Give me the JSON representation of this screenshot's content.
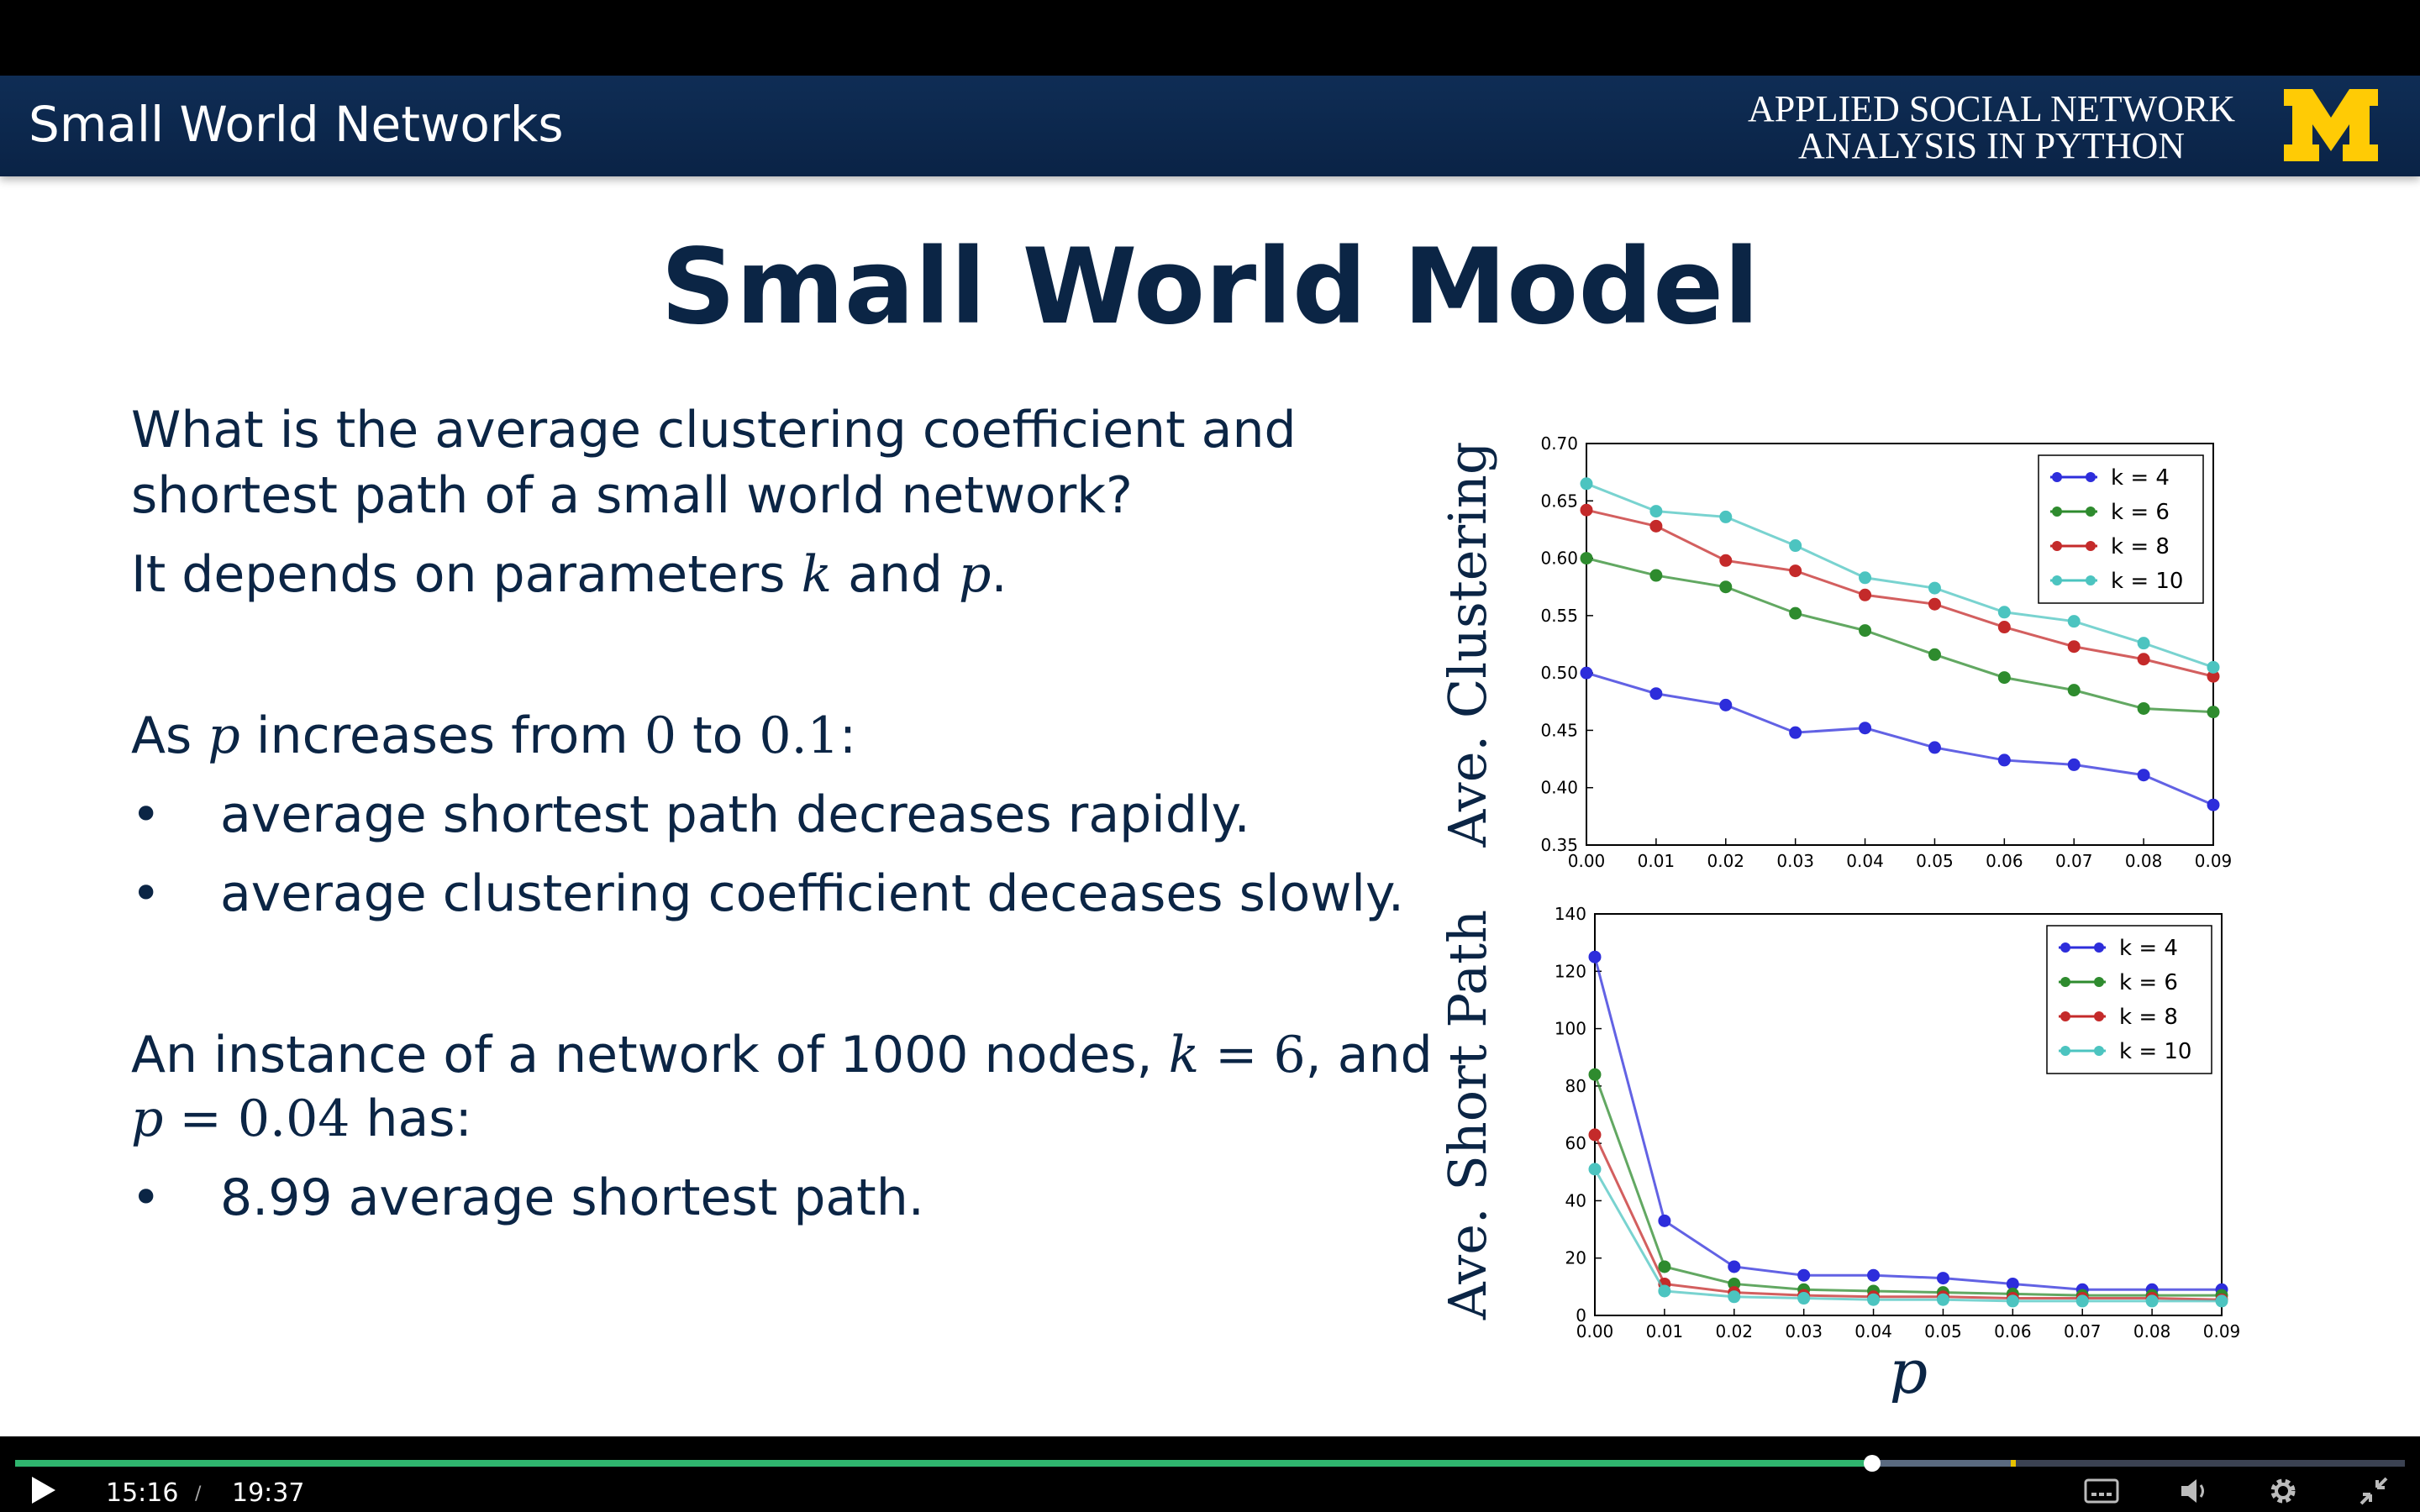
{
  "header": {
    "title": "Small World Networks",
    "course_line1": "APPLIED SOCIAL NETWORK",
    "course_line2": "ANALYSIS IN PYTHON",
    "logo_letter": "M",
    "bg_color": "#0f2d55",
    "logo_color": "#ffcb05"
  },
  "slide": {
    "title": "Small World Model",
    "q_line1": "What is the average clustering coefficient and",
    "q_line2": "shortest path of a small world network?",
    "dep_pre": "It depends on parameters ",
    "dep_k": "k",
    "dep_and": " and ",
    "dep_p": "p",
    "dep_end": ".",
    "as_pre": "As ",
    "as_p": "p",
    "as_mid": " increases from ",
    "as_0": "0",
    "as_to": " to ",
    "as_01": "0.1",
    "as_end": ":",
    "bullet_char": "•",
    "bullet1": "average shortest path decreases rapidly.",
    "bullet2": "average clustering coefficient deceases slowly.",
    "inst_pre": "An instance of a network of 1000 nodes, ",
    "inst_k": "k",
    "inst_eq1": " = 6",
    "inst_and": ", and",
    "inst_p": "p",
    "inst_eq2": " = 0.04",
    "inst_has": " has:",
    "bullet3": "8.99 average shortest path."
  },
  "chart_data": [
    {
      "type": "line",
      "ylabel": "Ave. Clustering",
      "xlabel": "",
      "x": [
        0.0,
        0.01,
        0.02,
        0.03,
        0.04,
        0.05,
        0.06,
        0.07,
        0.08,
        0.09
      ],
      "xticks": [
        "0.00",
        "0.01",
        "0.02",
        "0.03",
        "0.04",
        "0.05",
        "0.06",
        "0.07",
        "0.08",
        "0.09"
      ],
      "ylim": [
        0.35,
        0.7
      ],
      "yticks": [
        "0.35",
        "0.40",
        "0.45",
        "0.50",
        "0.55",
        "0.60",
        "0.65",
        "0.70"
      ],
      "legend": "top-right",
      "series": [
        {
          "name": "k = 4",
          "color": "#2d2ddb",
          "values": [
            0.5,
            0.482,
            0.472,
            0.448,
            0.452,
            0.435,
            0.424,
            0.42,
            0.411,
            0.385
          ]
        },
        {
          "name": "k = 6",
          "color": "#2e8b2e",
          "values": [
            0.6,
            0.585,
            0.575,
            0.552,
            0.537,
            0.516,
            0.496,
            0.485,
            0.469,
            0.466
          ]
        },
        {
          "name": "k = 8",
          "color": "#c42a2a",
          "values": [
            0.642,
            0.628,
            0.598,
            0.589,
            0.568,
            0.56,
            0.54,
            0.523,
            0.512,
            0.497
          ]
        },
        {
          "name": "k = 10",
          "color": "#4cc4c0",
          "values": [
            0.665,
            0.641,
            0.636,
            0.611,
            0.583,
            0.574,
            0.553,
            0.545,
            0.526,
            0.505
          ]
        }
      ]
    },
    {
      "type": "line",
      "ylabel": "Ave. Short Path",
      "xlabel": "p",
      "x": [
        0.0,
        0.01,
        0.02,
        0.03,
        0.04,
        0.05,
        0.06,
        0.07,
        0.08,
        0.09
      ],
      "xticks": [
        "0.00",
        "0.01",
        "0.02",
        "0.03",
        "0.04",
        "0.05",
        "0.06",
        "0.07",
        "0.08",
        "0.09"
      ],
      "ylim": [
        0,
        140
      ],
      "yticks": [
        "0",
        "20",
        "40",
        "60",
        "80",
        "100",
        "120",
        "140"
      ],
      "legend": "top-right",
      "series": [
        {
          "name": "k = 4",
          "color": "#2d2ddb",
          "values": [
            125,
            33,
            17,
            14,
            14,
            13,
            11,
            9,
            9,
            9
          ]
        },
        {
          "name": "k = 6",
          "color": "#2e8b2e",
          "values": [
            84,
            17,
            11,
            9,
            8.5,
            8,
            7.5,
            7,
            7,
            7
          ]
        },
        {
          "name": "k = 8",
          "color": "#c42a2a",
          "values": [
            63,
            11,
            8,
            7,
            6.5,
            6.5,
            6,
            6,
            6,
            5.5
          ]
        },
        {
          "name": "k = 10",
          "color": "#4cc4c0",
          "values": [
            51,
            8.5,
            6.5,
            6,
            5.5,
            5.5,
            5,
            5,
            5,
            5
          ]
        }
      ]
    }
  ],
  "player": {
    "current_time": "15:16",
    "separator": "/",
    "duration": "19:37",
    "progress": 0.777,
    "buffered": 0.835,
    "marker_position": 0.835,
    "accent_color": "#2fb56e",
    "play_icon": "play-icon",
    "captions_icon": "captions-icon",
    "volume_icon": "volume-icon",
    "settings_icon": "gear-icon",
    "fullscreen_icon": "exit-fullscreen-icon"
  }
}
